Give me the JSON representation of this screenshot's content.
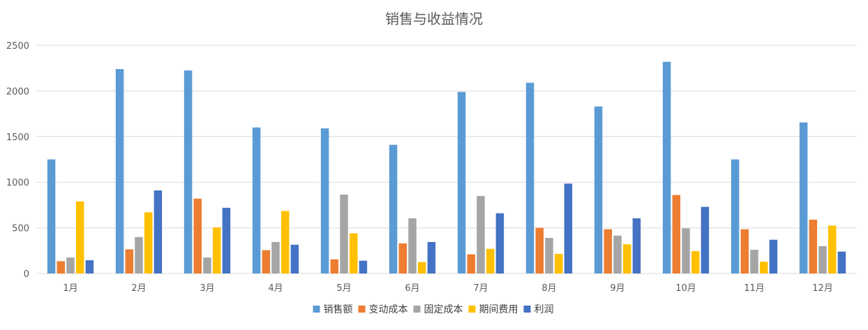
{
  "chart_data": {
    "type": "bar",
    "title": "销售与收益情况",
    "categories": [
      "1月",
      "2月",
      "3月",
      "4月",
      "5月",
      "6月",
      "7月",
      "8月",
      "9月",
      "10月",
      "11月",
      "12月"
    ],
    "ylim": [
      0,
      2500
    ],
    "yticks": [
      0,
      500,
      1000,
      1500,
      2000,
      2500
    ],
    "grid": true,
    "legend_position": "bottom",
    "series": [
      {
        "name": "销售额",
        "color": "#5b9bd5",
        "values": [
          1250,
          2240,
          2225,
          1600,
          1590,
          1410,
          1990,
          2090,
          1830,
          2320,
          1250,
          1655
        ]
      },
      {
        "name": "变动成本",
        "color": "#ed7d31",
        "values": [
          135,
          265,
          820,
          255,
          155,
          330,
          210,
          500,
          485,
          860,
          485,
          590
        ]
      },
      {
        "name": "固定成本",
        "color": "#a5a5a5",
        "values": [
          175,
          400,
          175,
          345,
          865,
          605,
          850,
          390,
          415,
          495,
          260,
          300
        ]
      },
      {
        "name": "期间费用",
        "color": "#ffc000",
        "values": [
          790,
          670,
          505,
          685,
          440,
          125,
          270,
          215,
          320,
          245,
          130,
          525
        ]
      },
      {
        "name": "利润",
        "color": "#4472c4",
        "values": [
          145,
          910,
          720,
          315,
          140,
          345,
          660,
          985,
          605,
          730,
          370,
          240
        ]
      }
    ]
  }
}
